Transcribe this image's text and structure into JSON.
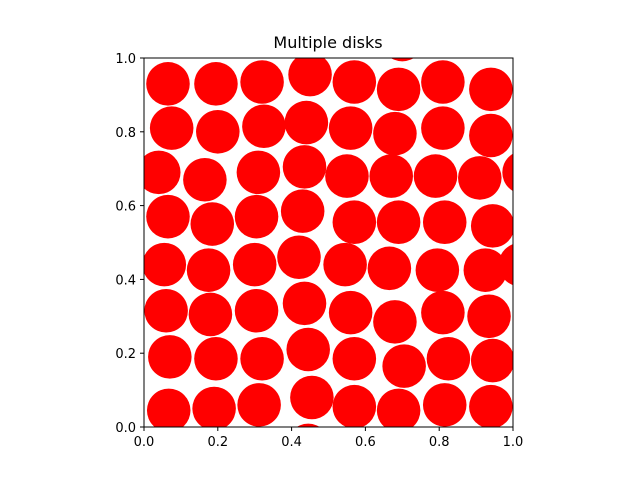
{
  "chart_data": {
    "type": "scatter",
    "title": "Multiple disks",
    "xlabel": "",
    "ylabel": "",
    "xlim": [
      0,
      1
    ],
    "ylim": [
      0,
      1
    ],
    "aspect": "equal",
    "grid": false,
    "x_ticks": [
      "0.0",
      "0.2",
      "0.4",
      "0.6",
      "0.8",
      "1.0"
    ],
    "y_ticks": [
      "0.0",
      "0.2",
      "0.4",
      "0.6",
      "0.8",
      "1.0"
    ],
    "disk_radius": 0.059,
    "disk_color": "#ff0000",
    "disks": [
      {
        "x": 0.067,
        "y": 0.045
      },
      {
        "x": 0.19,
        "y": 0.05
      },
      {
        "x": 0.312,
        "y": 0.06
      },
      {
        "x": 0.455,
        "y": 0.08
      },
      {
        "x": 0.57,
        "y": 0.055
      },
      {
        "x": 0.69,
        "y": 0.045
      },
      {
        "x": 0.815,
        "y": 0.06
      },
      {
        "x": 0.94,
        "y": 0.055
      },
      {
        "x": 0.07,
        "y": 0.19
      },
      {
        "x": 0.195,
        "y": 0.185
      },
      {
        "x": 0.32,
        "y": 0.185
      },
      {
        "x": 0.445,
        "y": 0.21
      },
      {
        "x": 0.57,
        "y": 0.185
      },
      {
        "x": 0.705,
        "y": 0.165
      },
      {
        "x": 0.825,
        "y": 0.185
      },
      {
        "x": 0.945,
        "y": 0.18
      },
      {
        "x": 0.06,
        "y": 0.315
      },
      {
        "x": 0.18,
        "y": 0.305
      },
      {
        "x": 0.305,
        "y": 0.315
      },
      {
        "x": 0.435,
        "y": 0.335
      },
      {
        "x": 0.56,
        "y": 0.31
      },
      {
        "x": 0.68,
        "y": 0.285
      },
      {
        "x": 0.81,
        "y": 0.31
      },
      {
        "x": 0.935,
        "y": 0.3
      },
      {
        "x": 0.055,
        "y": 0.44
      },
      {
        "x": 0.175,
        "y": 0.425
      },
      {
        "x": 0.3,
        "y": 0.44
      },
      {
        "x": 0.42,
        "y": 0.46
      },
      {
        "x": 0.545,
        "y": 0.44
      },
      {
        "x": 0.665,
        "y": 0.43
      },
      {
        "x": 0.795,
        "y": 0.425
      },
      {
        "x": 0.925,
        "y": 0.425
      },
      {
        "x": 1.02,
        "y": 0.44
      },
      {
        "x": 0.065,
        "y": 0.57
      },
      {
        "x": 0.185,
        "y": 0.55
      },
      {
        "x": 0.305,
        "y": 0.57
      },
      {
        "x": 0.43,
        "y": 0.585
      },
      {
        "x": 0.57,
        "y": 0.555
      },
      {
        "x": 0.69,
        "y": 0.555
      },
      {
        "x": 0.815,
        "y": 0.555
      },
      {
        "x": 0.945,
        "y": 0.545
      },
      {
        "x": 0.04,
        "y": 0.69
      },
      {
        "x": 0.165,
        "y": 0.67
      },
      {
        "x": 0.31,
        "y": 0.69
      },
      {
        "x": 0.435,
        "y": 0.705
      },
      {
        "x": 0.55,
        "y": 0.68
      },
      {
        "x": 0.67,
        "y": 0.68
      },
      {
        "x": 0.79,
        "y": 0.68
      },
      {
        "x": 0.91,
        "y": 0.675
      },
      {
        "x": 1.03,
        "y": 0.69
      },
      {
        "x": 0.075,
        "y": 0.81
      },
      {
        "x": 0.2,
        "y": 0.8
      },
      {
        "x": 0.325,
        "y": 0.815
      },
      {
        "x": 0.44,
        "y": 0.825
      },
      {
        "x": 0.56,
        "y": 0.81
      },
      {
        "x": 0.68,
        "y": 0.795
      },
      {
        "x": 0.81,
        "y": 0.81
      },
      {
        "x": 0.94,
        "y": 0.79
      },
      {
        "x": 0.065,
        "y": 0.93
      },
      {
        "x": 0.195,
        "y": 0.93
      },
      {
        "x": 0.32,
        "y": 0.935
      },
      {
        "x": 0.45,
        "y": 0.955
      },
      {
        "x": 0.57,
        "y": 0.935
      },
      {
        "x": 0.69,
        "y": 0.915
      },
      {
        "x": 0.81,
        "y": 0.935
      },
      {
        "x": 0.94,
        "y": 0.915
      },
      {
        "x": 0.07,
        "y": 1.06
      },
      {
        "x": 0.7,
        "y": 1.05
      },
      {
        "x": 0.445,
        "y": -0.05
      }
    ]
  }
}
